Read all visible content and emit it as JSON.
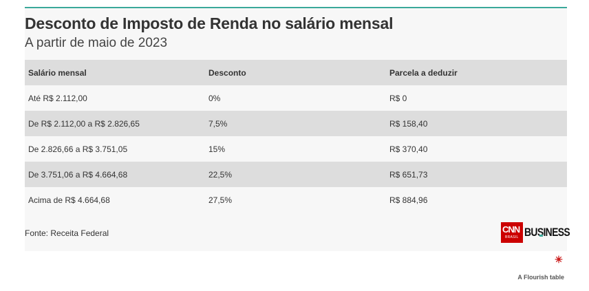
{
  "header": {
    "title": "Desconto de Imposto de Renda no salário mensal",
    "subtitle": "A partir de maio de 2023"
  },
  "table": {
    "columns": [
      "Salário mensal",
      "Desconto",
      "Parcela a deduzir"
    ],
    "rows": [
      [
        "Até R$ 2.112,00",
        "0%",
        "R$ 0"
      ],
      [
        "De R$ 2.112,00 a R$ 2.826,65",
        "7,5%",
        "R$ 158,40"
      ],
      [
        "De 2.826,66 a R$ 3.751,05",
        "15%",
        "R$ 370,40"
      ],
      [
        "De 3.751,06 a R$ 4.664,68",
        "22,5%",
        "R$ 651,73"
      ],
      [
        "Acima de R$ 4.664,68",
        "27,5%",
        "R$ 884,96"
      ]
    ]
  },
  "footer": {
    "source": "Fonte: Receita Federal",
    "logo": {
      "cnn": "CNN",
      "brasil": "BRASIL",
      "business": "BUSINESS"
    },
    "credit": "A Flourish table"
  },
  "colors": {
    "accent": "#3aa89a",
    "header_row": "#dddddd",
    "card_bg": "#f7f7f7",
    "logo_red": "#cc0000",
    "flourish_red": "#cc2222"
  },
  "icons": {
    "flourish": "flourish-logo-icon"
  }
}
